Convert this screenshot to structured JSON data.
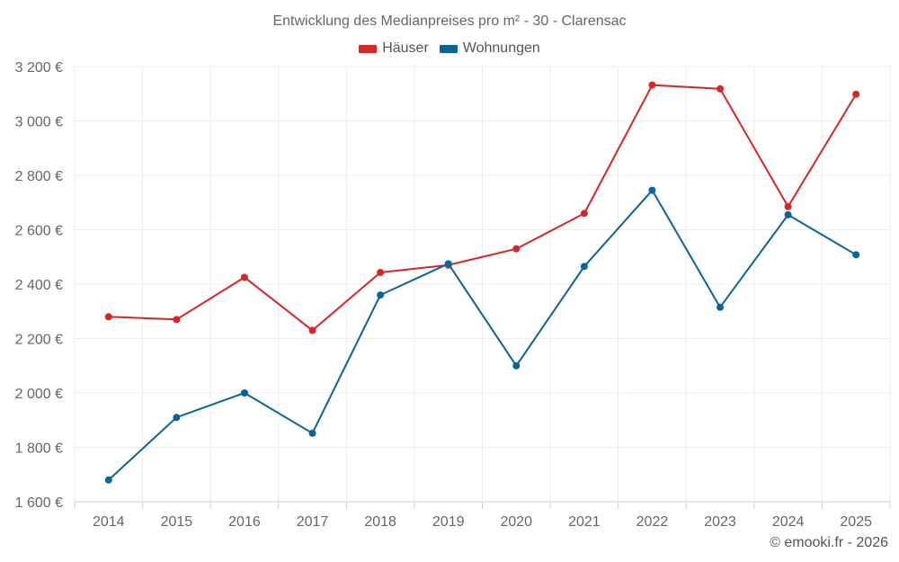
{
  "chart_data": {
    "type": "line",
    "title": "Entwicklung des Medianpreises pro m² - 30 - Clarensac",
    "xlabel": "",
    "ylabel": "",
    "categories": [
      "2014",
      "2015",
      "2016",
      "2017",
      "2018",
      "2019",
      "2020",
      "2021",
      "2022",
      "2023",
      "2024",
      "2025"
    ],
    "ylim": [
      1600,
      3200
    ],
    "yticks": [
      1600,
      1800,
      2000,
      2200,
      2400,
      2600,
      2800,
      3000,
      3200
    ],
    "ytick_labels": [
      "1 600 €",
      "1 800 €",
      "2 000 €",
      "2 200 €",
      "2 400 €",
      "2 600 €",
      "2 800 €",
      "3 000 €",
      "3 200 €"
    ],
    "grid": true,
    "legend_position": "top-center",
    "series": [
      {
        "name": "Häuser",
        "color": "#d62728",
        "values": [
          2280,
          2270,
          2425,
          2230,
          2443,
          2470,
          2530,
          2660,
          3132,
          3118,
          2685,
          3098
        ]
      },
      {
        "name": "Wohnungen",
        "color": "#0b6496",
        "values": [
          1680,
          1910,
          2000,
          1852,
          2360,
          2475,
          2100,
          2465,
          2745,
          2315,
          2655,
          2508
        ]
      }
    ]
  },
  "credit": "© emooki.fr - 2026"
}
